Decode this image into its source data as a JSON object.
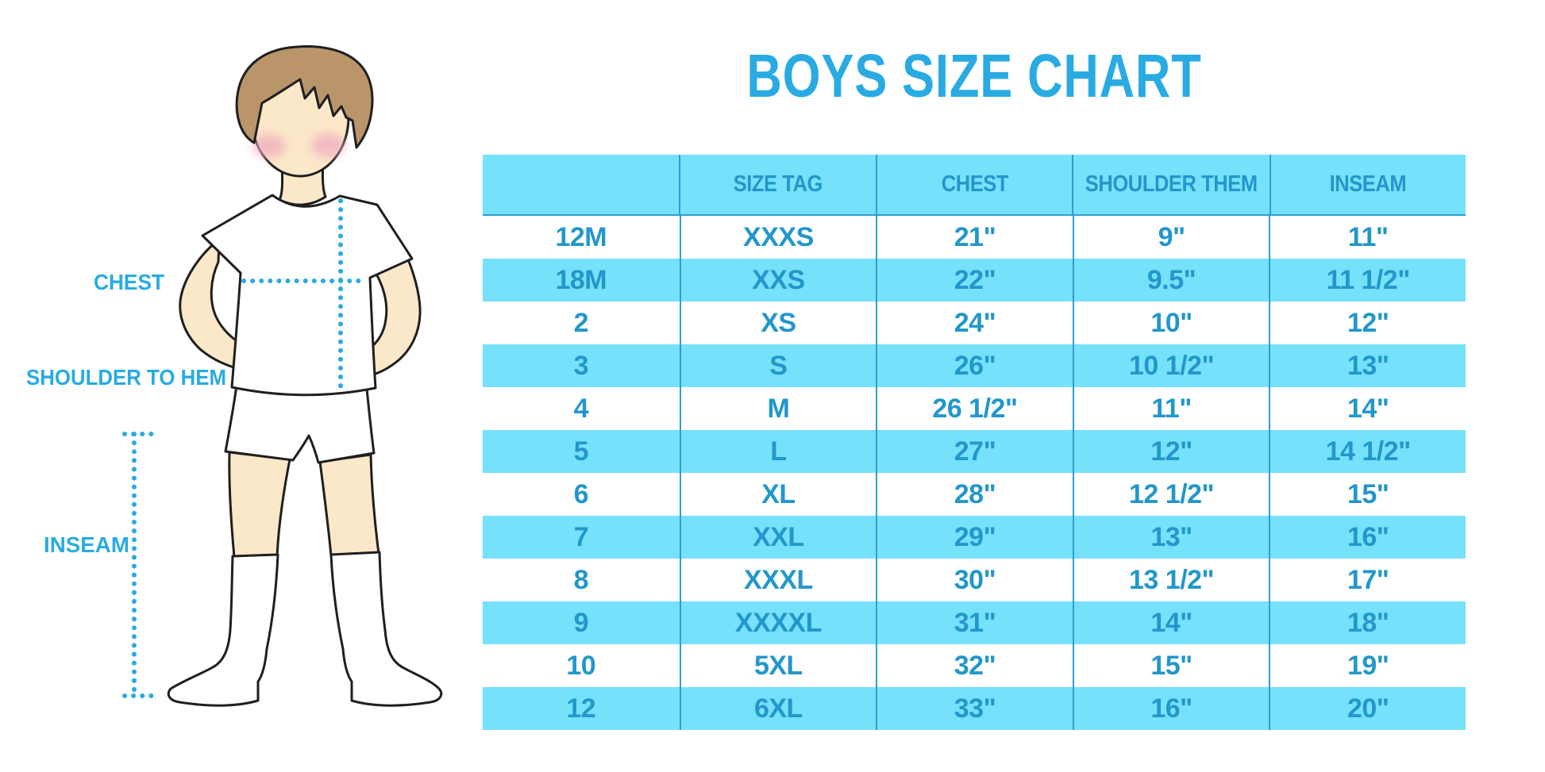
{
  "page": {
    "title": "BOYS SIZE CHART"
  },
  "figure_labels": {
    "chest": "CHEST",
    "shoulder_to_hem": "SHOULDER TO HEM",
    "inseam": "INSEAM"
  },
  "size_chart": {
    "columns": [
      "",
      "SIZE TAG",
      "CHEST",
      "SHOULDER THEM",
      "INSEAM"
    ],
    "rows": [
      [
        "12M",
        "XXXS",
        "21\"",
        "9\"",
        "11\""
      ],
      [
        "18M",
        "XXS",
        "22\"",
        "9.5\"",
        "11 1/2\""
      ],
      [
        "2",
        "XS",
        "24\"",
        "10\"",
        "12\""
      ],
      [
        "3",
        "S",
        "26\"",
        "10 1/2\"",
        "13\""
      ],
      [
        "4",
        "M",
        "26 1/2\"",
        "11\"",
        "14\""
      ],
      [
        "5",
        "L",
        "27\"",
        "12\"",
        "14 1/2\""
      ],
      [
        "6",
        "XL",
        "28\"",
        "12 1/2\"",
        "15\""
      ],
      [
        "7",
        "XXL",
        "29\"",
        "13\"",
        "16\""
      ],
      [
        "8",
        "XXXL",
        "30\"",
        "13 1/2\"",
        "17\""
      ],
      [
        "9",
        "XXXXL",
        "31\"",
        "14\"",
        "18\""
      ],
      [
        "10",
        "5XL",
        "32\"",
        "15\"",
        "19\""
      ],
      [
        "12",
        "6XL",
        "33\"",
        "16\"",
        "20\""
      ]
    ]
  },
  "chart_data": {
    "type": "table",
    "title": "BOYS SIZE CHART",
    "columns": [
      "",
      "SIZE TAG",
      "CHEST",
      "SHOULDER THEM",
      "INSEAM"
    ],
    "rows": [
      [
        "12M",
        "XXXS",
        "21\"",
        "9\"",
        "11\""
      ],
      [
        "18M",
        "XXS",
        "22\"",
        "9.5\"",
        "11 1/2\""
      ],
      [
        "2",
        "XS",
        "24\"",
        "10\"",
        "12\""
      ],
      [
        "3",
        "S",
        "26\"",
        "10 1/2\"",
        "13\""
      ],
      [
        "4",
        "M",
        "26 1/2\"",
        "11\"",
        "14\""
      ],
      [
        "5",
        "L",
        "27\"",
        "12\"",
        "14 1/2\""
      ],
      [
        "6",
        "XL",
        "28\"",
        "12 1/2\"",
        "15\""
      ],
      [
        "7",
        "XXL",
        "29\"",
        "13\"",
        "16\""
      ],
      [
        "8",
        "XXXL",
        "30\"",
        "13 1/2\"",
        "17\""
      ],
      [
        "9",
        "XXXXL",
        "31\"",
        "14\"",
        "18\""
      ],
      [
        "10",
        "5XL",
        "32\"",
        "15\"",
        "19\""
      ],
      [
        "12",
        "6XL",
        "33\"",
        "16\"",
        "20\""
      ]
    ]
  },
  "colors": {
    "accent_blue": "#29ABE2",
    "table_row_blue": "#76E1FB",
    "table_text_blue": "#2297CB",
    "divider_blue": "#2BA0CE",
    "skin": "#FBE8C8",
    "hair": "#B99569",
    "cheek": "#F0AEC0",
    "outline": "#1F1F1F"
  }
}
